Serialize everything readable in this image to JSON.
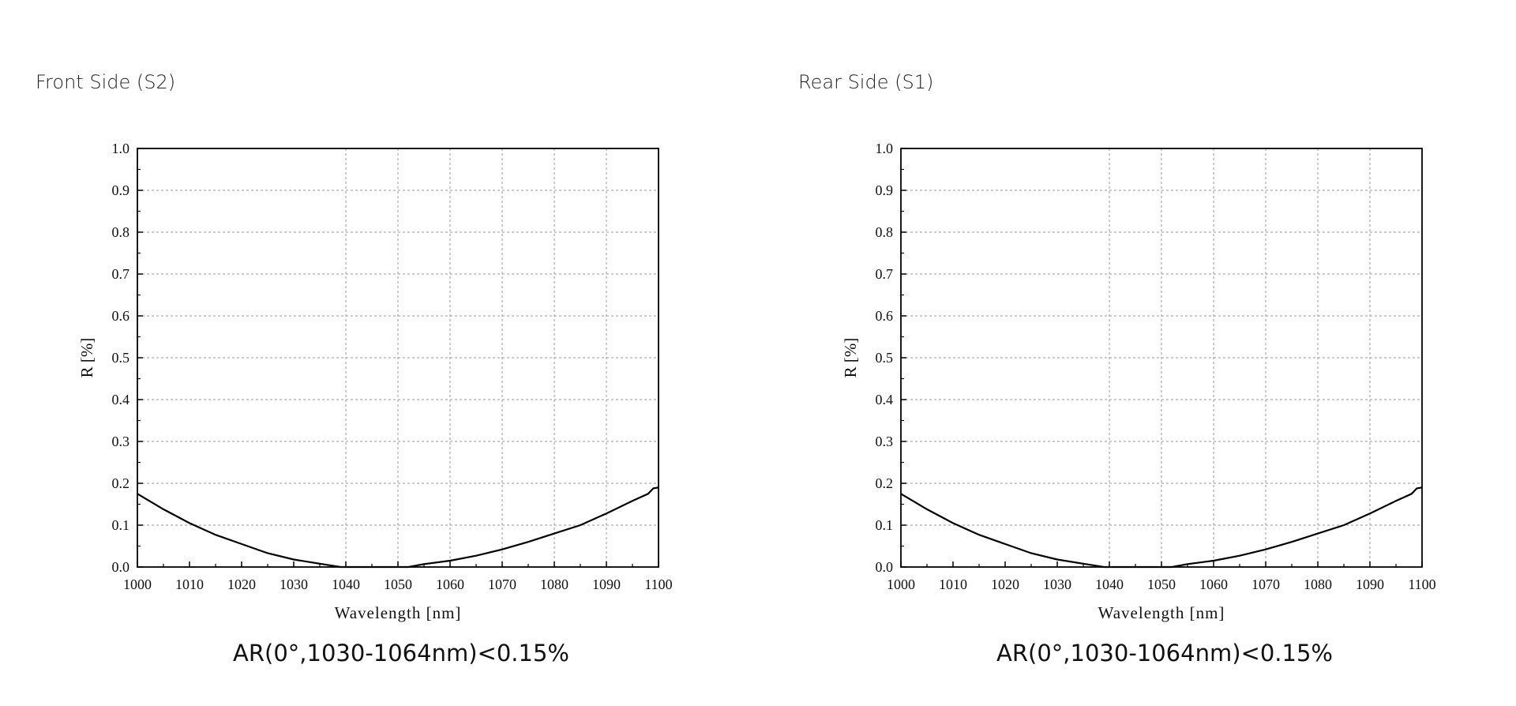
{
  "chart_data": [
    {
      "type": "line",
      "title": "Front  Side (S2)",
      "note": "AR(0°,1030-1064nm)<0.15%",
      "xlabel": "Wavelength [nm]",
      "ylabel": "R [%]",
      "xlim": [
        1000,
        1100
      ],
      "ylim": [
        0,
        1.0
      ],
      "xticks": [
        "1000",
        "1010",
        "1020",
        "1030",
        "1040",
        "1050",
        "1060",
        "1070",
        "1080",
        "1090",
        "1100"
      ],
      "yticks": [
        "0.0",
        "0.1",
        "0.2",
        "0.3",
        "0.4",
        "0.5",
        "0.6",
        "0.7",
        "0.8",
        "0.9",
        "1.0"
      ],
      "grid": true,
      "series": [
        {
          "name": "R",
          "x": [
            1000,
            1005,
            1010,
            1015,
            1020,
            1025,
            1030,
            1035,
            1038,
            1039,
            1052,
            1055,
            1060,
            1065,
            1070,
            1075,
            1080,
            1085,
            1090,
            1095,
            1098,
            1099,
            1100
          ],
          "y": [
            0.175,
            0.138,
            0.105,
            0.077,
            0.055,
            0.033,
            0.018,
            0.008,
            0.002,
            0.0,
            0.0,
            0.007,
            0.015,
            0.027,
            0.042,
            0.06,
            0.08,
            0.1,
            0.128,
            0.158,
            0.175,
            0.188,
            0.19
          ]
        }
      ]
    },
    {
      "type": "line",
      "title": "Rear  Side (S1)",
      "note": "AR(0°,1030-1064nm)<0.15%",
      "xlabel": "Wavelength [nm]",
      "ylabel": "R [%]",
      "xlim": [
        1000,
        1100
      ],
      "ylim": [
        0,
        1.0
      ],
      "xticks": [
        "1000",
        "1010",
        "1020",
        "1030",
        "1040",
        "1050",
        "1060",
        "1070",
        "1080",
        "1090",
        "1100"
      ],
      "yticks": [
        "0.0",
        "0.1",
        "0.2",
        "0.3",
        "0.4",
        "0.5",
        "0.6",
        "0.7",
        "0.8",
        "0.9",
        "1.0"
      ],
      "grid": true,
      "series": [
        {
          "name": "R",
          "x": [
            1000,
            1005,
            1010,
            1015,
            1020,
            1025,
            1030,
            1035,
            1038,
            1039,
            1052,
            1055,
            1060,
            1065,
            1070,
            1075,
            1080,
            1085,
            1090,
            1095,
            1098,
            1099,
            1100
          ],
          "y": [
            0.175,
            0.138,
            0.105,
            0.077,
            0.055,
            0.033,
            0.018,
            0.008,
            0.002,
            0.0,
            0.0,
            0.007,
            0.015,
            0.027,
            0.042,
            0.06,
            0.08,
            0.1,
            0.128,
            0.158,
            0.175,
            0.188,
            0.19
          ]
        }
      ]
    }
  ]
}
